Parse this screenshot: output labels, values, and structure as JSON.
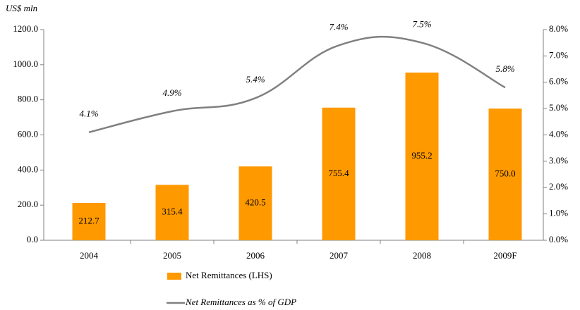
{
  "chart_data": {
    "type": "bar",
    "y_axis_label": "US$ mln",
    "categories": [
      "2004",
      "2005",
      "2006",
      "2007",
      "2008",
      "2009F"
    ],
    "series": [
      {
        "name": "Net Remittances (LHS)",
        "color": "#ff9900",
        "type": "bar",
        "values": [
          212.7,
          315.4,
          420.5,
          755.4,
          955.2,
          750
        ],
        "value_labels": [
          "212.7",
          "315.4",
          "420.5",
          "755.4",
          "955.2",
          "750.0"
        ]
      },
      {
        "name": "Net Remittances as % of GDP",
        "color": "#808080",
        "type": "line",
        "axis": "y2",
        "values": [
          4.1,
          4.9,
          5.4,
          7.4,
          7.5,
          5.8
        ],
        "value_labels": [
          "4.1%",
          "4.9%",
          "5.4%",
          "7.4%",
          "7.5%",
          "5.8%"
        ]
      }
    ],
    "ylim": [
      0,
      1200
    ],
    "yticks": [
      {
        "value": 0,
        "label": "0.0"
      },
      {
        "value": 200,
        "label": "200.0"
      },
      {
        "value": 400,
        "label": "400.0"
      },
      {
        "value": 600,
        "label": "600.0"
      },
      {
        "value": 800,
        "label": "800.0"
      },
      {
        "value": 1000,
        "label": "1000.0"
      },
      {
        "value": 1200,
        "label": "1200.0"
      }
    ],
    "y2lim": [
      0,
      8
    ],
    "y2ticks": [
      {
        "value": 0,
        "label": "0.0%"
      },
      {
        "value": 1,
        "label": "1.0%"
      },
      {
        "value": 2,
        "label": "2.0%"
      },
      {
        "value": 3,
        "label": "3.0%"
      },
      {
        "value": 4,
        "label": "4.0%"
      },
      {
        "value": 5,
        "label": "5.0%"
      },
      {
        "value": 6,
        "label": "6.0%"
      },
      {
        "value": 7,
        "label": "7.0%"
      },
      {
        "value": 8,
        "label": "8.0%"
      }
    ],
    "grid": false,
    "legend": "bottom"
  }
}
